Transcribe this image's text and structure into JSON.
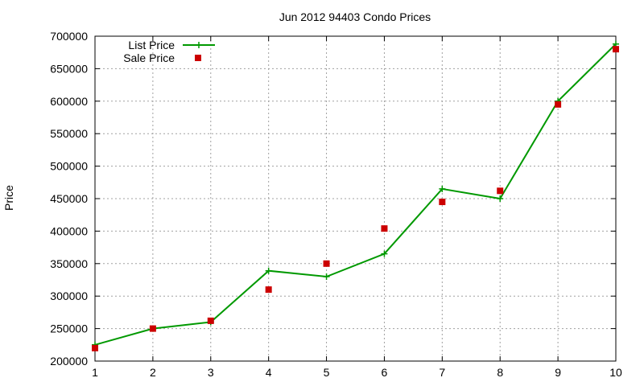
{
  "chart_data": {
    "type": "line",
    "title": "Jun 2012 94403 Condo Prices",
    "xlabel": "",
    "ylabel": "Price",
    "x": [
      1,
      2,
      3,
      4,
      5,
      6,
      7,
      8,
      9,
      10
    ],
    "xlim": [
      1,
      10
    ],
    "ylim": [
      200000,
      700000
    ],
    "yticks": [
      200000,
      250000,
      300000,
      350000,
      400000,
      450000,
      500000,
      550000,
      600000,
      650000,
      700000
    ],
    "xticks": [
      1,
      2,
      3,
      4,
      5,
      6,
      7,
      8,
      9,
      10
    ],
    "grid": true,
    "legend_position": "top-left",
    "series": [
      {
        "name": "List Price",
        "style": "line+cross",
        "color": "#009900",
        "values": [
          225000,
          250000,
          260000,
          339000,
          330000,
          365000,
          465000,
          450000,
          600000,
          688000
        ]
      },
      {
        "name": "Sale Price",
        "style": "square-points",
        "color": "#cc0000",
        "values": [
          220000,
          250000,
          262000,
          310000,
          350000,
          404000,
          445000,
          462000,
          595000,
          680000
        ]
      }
    ]
  }
}
